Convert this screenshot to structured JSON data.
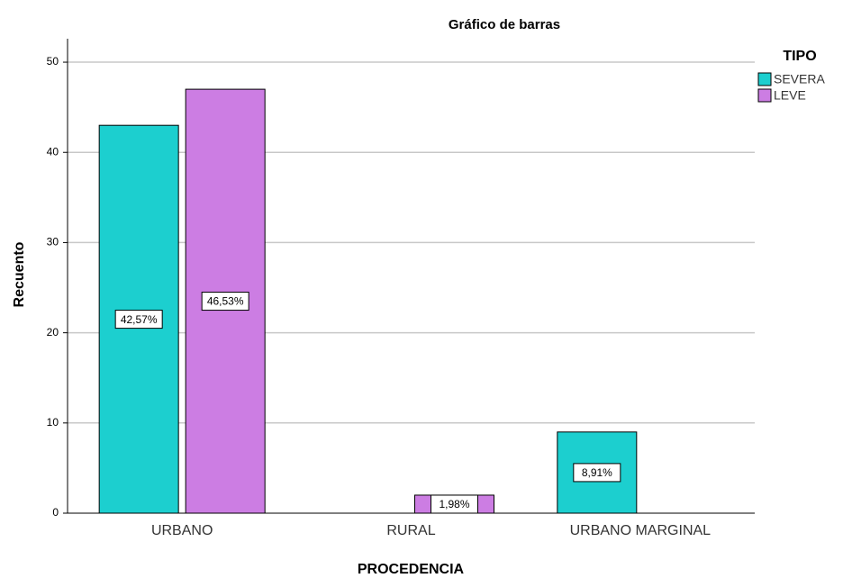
{
  "chart_data": {
    "type": "bar",
    "title": "Gráfico de barras",
    "x_label": "PROCEDENCIA",
    "y_label": "Recuento",
    "legend_title": "TIPO",
    "legend_position": "right",
    "categories": [
      "URBANO",
      "RURAL",
      "URBANO MARGINAL"
    ],
    "series": [
      {
        "name": "SEVERA",
        "color": "#1ccfcf",
        "values": [
          43,
          null,
          9
        ],
        "percent_labels": [
          "42,57%",
          null,
          "8,91%"
        ]
      },
      {
        "name": "LEVE",
        "color": "#cc7de3",
        "values": [
          47,
          2,
          null
        ],
        "percent_labels": [
          "46,53%",
          "1,98%",
          null
        ]
      }
    ],
    "ylim": [
      0,
      52.6
    ],
    "yticks": [
      0,
      10,
      20,
      30,
      40,
      50
    ],
    "grid": true
  }
}
